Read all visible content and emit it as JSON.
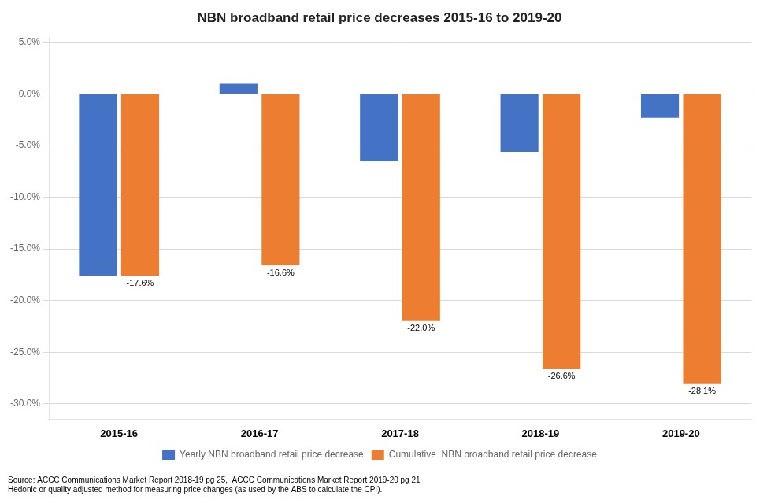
{
  "chart_data": {
    "type": "bar",
    "title": "NBN broadband retail price decreases 2015-16 to 2019-20",
    "categories": [
      "2015-16",
      "2016-17",
      "2017-18",
      "2018-19",
      "2019-20"
    ],
    "series": [
      {
        "name": "Yearly NBN broadband retail price decrease",
        "color": "#4472C4",
        "values": [
          -17.6,
          1.0,
          -6.5,
          -5.6,
          -2.3
        ]
      },
      {
        "name": "Cumulative  NBN broadband retail price decrease",
        "color": "#ED7D31",
        "values": [
          -17.6,
          -16.6,
          -22.0,
          -26.6,
          -28.1
        ],
        "value_labels": [
          "-17.6%",
          "-16.6%",
          "-22.0%",
          "-26.6%",
          "-28.1%"
        ]
      }
    ],
    "ylim": [
      -31.5,
      5.5
    ],
    "yticks": [
      {
        "value": 5.0,
        "label": "5.0%"
      },
      {
        "value": 0.0,
        "label": "0.0%"
      },
      {
        "value": -5.0,
        "label": "-5.0%"
      },
      {
        "value": -10.0,
        "label": "-10.0%"
      },
      {
        "value": -15.0,
        "label": "-15.0%"
      },
      {
        "value": -20.0,
        "label": "-20.0%"
      },
      {
        "value": -25.0,
        "label": "-25.0%"
      },
      {
        "value": -30.0,
        "label": "-30.0%"
      }
    ],
    "grid": true,
    "legend": "bottom",
    "annotations": [
      "Source: ACCC Communications Market Report 2018-19 pg 25,  ACCC Communications Market Report 2019-20 pg 21",
      "Hedonic or quality adjusted method for measuring price changes (as used by the ABS to calculate the CPI)."
    ]
  }
}
